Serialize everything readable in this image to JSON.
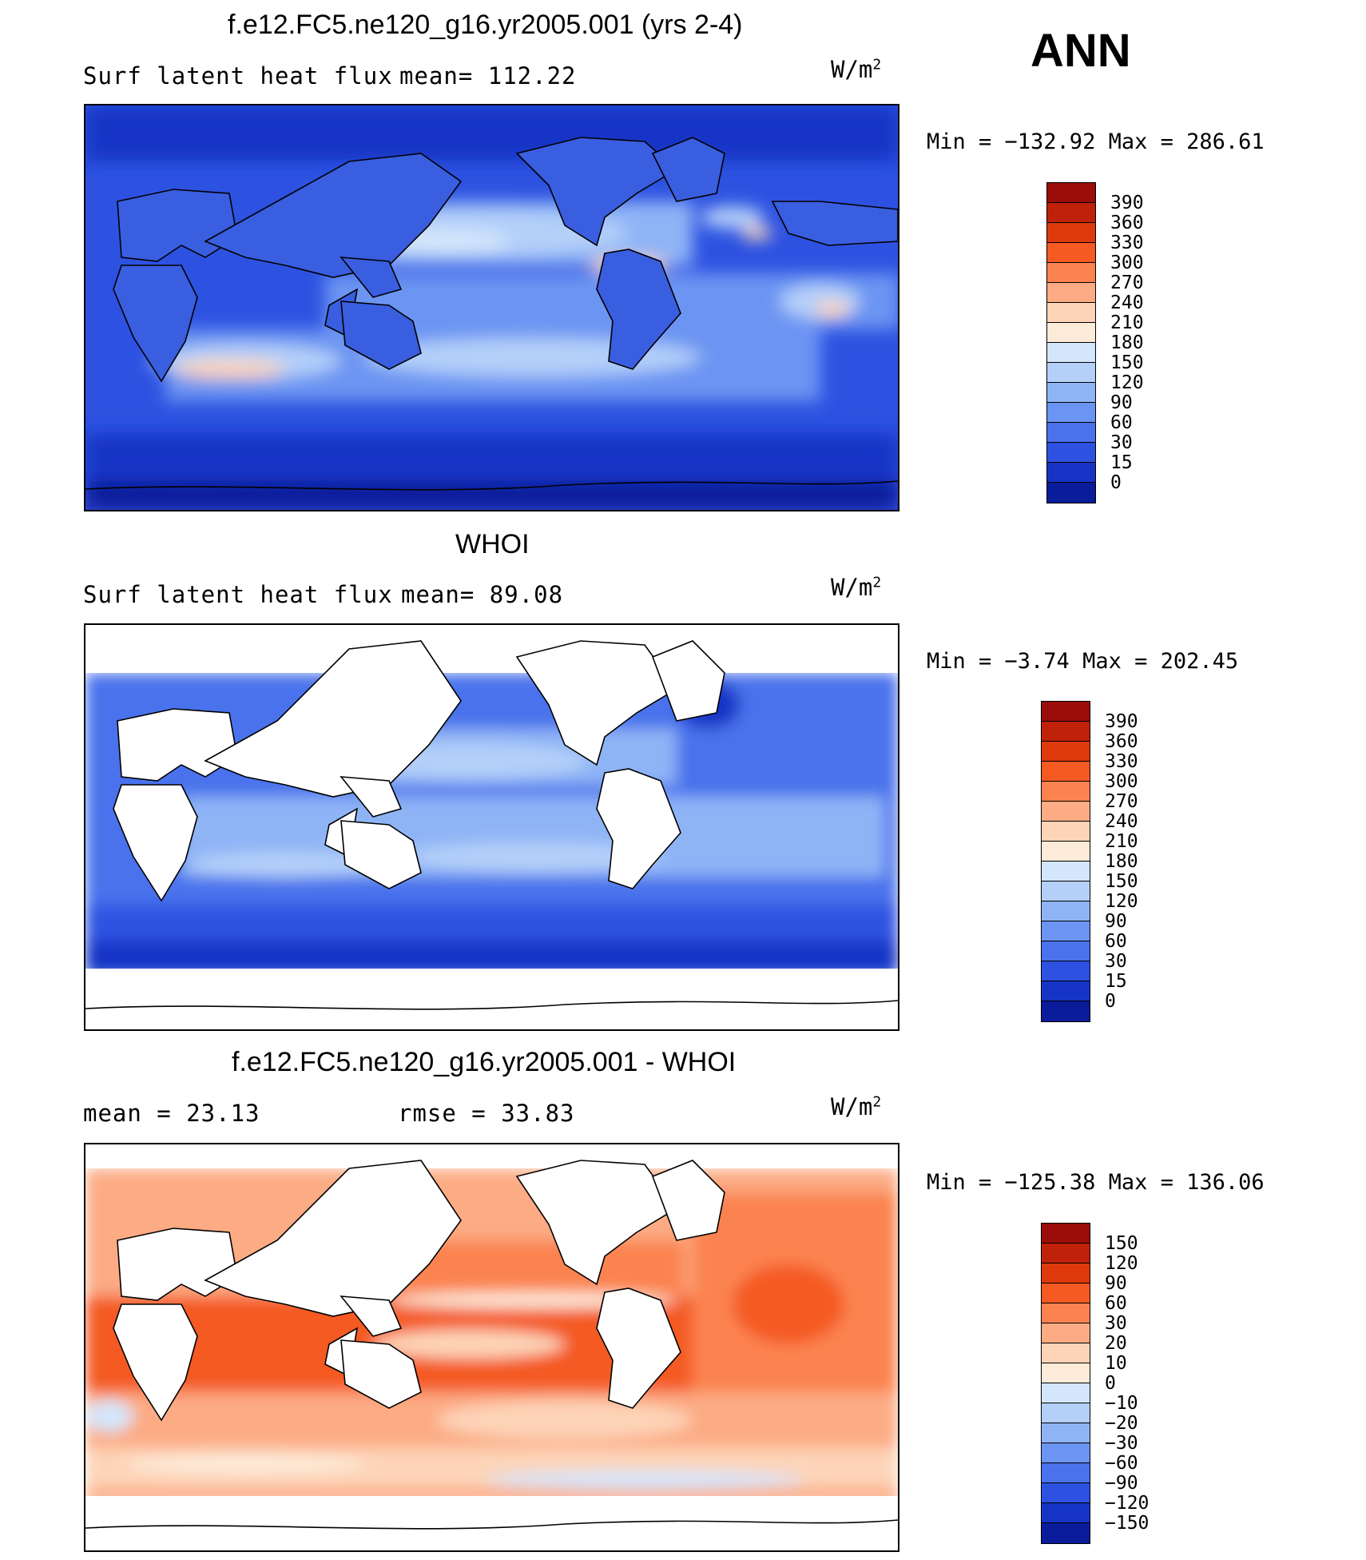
{
  "season": "ANN",
  "units_base": "W/m",
  "units_exp": "2",
  "panels": [
    {
      "id": "model",
      "title": "f.e12.FC5.ne120_g16.yr2005.001 (yrs 2-4)",
      "left_label": "Surf latent heat flux",
      "right_label": "mean= 112.22",
      "minmax": "Min = −132.92 Max = 286.61",
      "colorbar": {
        "labels": [
          "390",
          "360",
          "330",
          "300",
          "270",
          "240",
          "210",
          "180",
          "150",
          "120",
          "90",
          "60",
          "30",
          "15",
          "0"
        ],
        "colors": [
          "#9b0d08",
          "#bf2208",
          "#df3a0c",
          "#f45a22",
          "#fb8350",
          "#fcab84",
          "#fdd4b8",
          "#fdebd9",
          "#d4e6fb",
          "#b4d0f9",
          "#8fb4f6",
          "#6c94f2",
          "#4a72ec",
          "#2d52e1",
          "#1534c6",
          "#0a1c9a"
        ]
      }
    },
    {
      "id": "obs",
      "title": "WHOI",
      "left_label": "Surf latent heat flux",
      "right_label": "mean=  89.08",
      "minmax": "Min =  −3.74 Max = 202.45",
      "colorbar": {
        "labels": [
          "390",
          "360",
          "330",
          "300",
          "270",
          "240",
          "210",
          "180",
          "150",
          "120",
          "90",
          "60",
          "30",
          "15",
          "0"
        ],
        "colors": [
          "#9b0d08",
          "#bf2208",
          "#df3a0c",
          "#f45a22",
          "#fb8350",
          "#fcab84",
          "#fdd4b8",
          "#fdebd9",
          "#d4e6fb",
          "#b4d0f9",
          "#8fb4f6",
          "#6c94f2",
          "#4a72ec",
          "#2d52e1",
          "#1534c6",
          "#0a1c9a"
        ]
      }
    },
    {
      "id": "diff",
      "title": "f.e12.FC5.ne120_g16.yr2005.001 - WHOI",
      "left_label": "mean =   23.13",
      "right_label": "rmse =   33.83",
      "minmax": "Min = −125.38 Max = 136.06",
      "colorbar": {
        "labels": [
          "150",
          "120",
          "90",
          "60",
          "30",
          "20",
          "10",
          "0",
          "−10",
          "−20",
          "−30",
          "−60",
          "−90",
          "−120",
          "−150"
        ],
        "colors": [
          "#9b0d08",
          "#bf2208",
          "#df3a0c",
          "#f45a22",
          "#fb8350",
          "#fcab84",
          "#fdd4b8",
          "#fdebd9",
          "#d4e6fb",
          "#b4d0f9",
          "#8fb4f6",
          "#6c94f2",
          "#4a72ec",
          "#2d52e1",
          "#1534c6",
          "#0a1c9a"
        ]
      }
    }
  ]
}
